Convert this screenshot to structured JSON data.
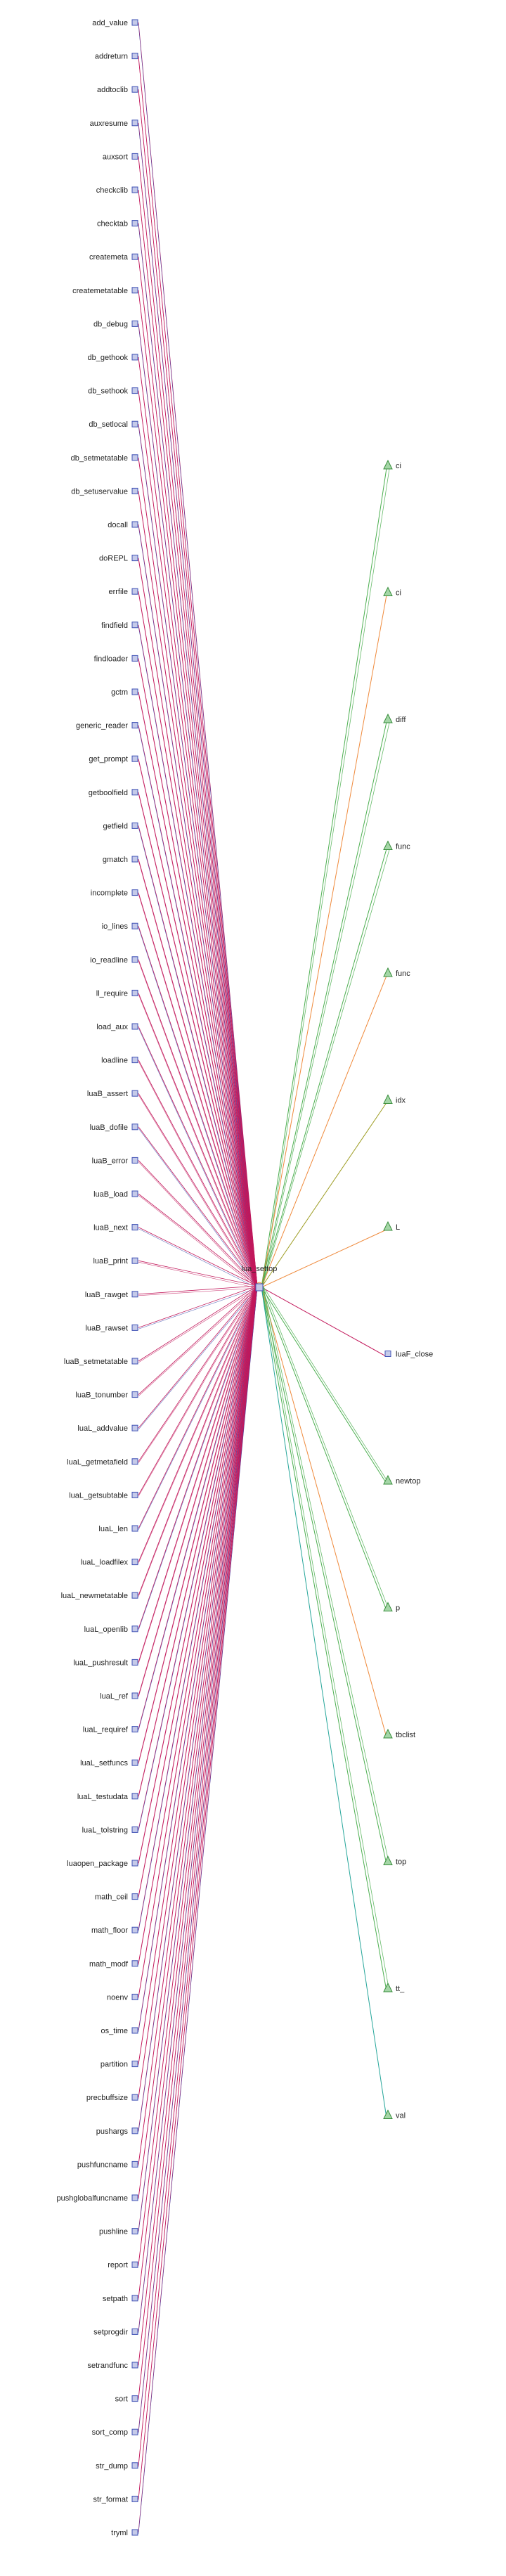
{
  "center": {
    "label": "lua_settop"
  },
  "left_nodes": [
    "add_value",
    "addreturn",
    "addtoclib",
    "auxresume",
    "auxsort",
    "checkclib",
    "checktab",
    "createmeta",
    "createmetatable",
    "db_debug",
    "db_gethook",
    "db_sethook",
    "db_setlocal",
    "db_setmetatable",
    "db_setuservalue",
    "docall",
    "doREPL",
    "errfile",
    "findfield",
    "findloader",
    "gctm",
    "generic_reader",
    "get_prompt",
    "getboolfield",
    "getfield",
    "gmatch",
    "incomplete",
    "io_lines",
    "io_readline",
    "ll_require",
    "load_aux",
    "loadline",
    "luaB_assert",
    "luaB_dofile",
    "luaB_error",
    "luaB_load",
    "luaB_next",
    "luaB_print",
    "luaB_rawget",
    "luaB_rawset",
    "luaB_setmetatable",
    "luaB_tonumber",
    "luaL_addvalue",
    "luaL_getmetafield",
    "luaL_getsubtable",
    "luaL_len",
    "luaL_loadfilex",
    "luaL_newmetatable",
    "luaL_openlib",
    "luaL_pushresult",
    "luaL_ref",
    "luaL_requiref",
    "luaL_setfuncs",
    "luaL_testudata",
    "luaL_tolstring",
    "luaopen_package",
    "math_ceil",
    "math_floor",
    "math_modf",
    "noenv",
    "os_time",
    "partition",
    "precbuffsize",
    "pushargs",
    "pushfuncname",
    "pushglobalfuncname",
    "pushline",
    "report",
    "setpath",
    "setprogdir",
    "setrandfunc",
    "sort",
    "sort_comp",
    "str_dump",
    "str_format",
    "tryml"
  ],
  "right_nodes": [
    {
      "label": "ci",
      "shape": "triangle",
      "edge": "green"
    },
    {
      "label": "ci",
      "shape": "triangle",
      "edge": "orange"
    },
    {
      "label": "diff",
      "shape": "triangle",
      "edge": "green"
    },
    {
      "label": "func",
      "shape": "triangle",
      "edge": "green"
    },
    {
      "label": "func",
      "shape": "triangle",
      "edge": "orange"
    },
    {
      "label": "idx",
      "shape": "triangle",
      "edge": "olive"
    },
    {
      "label": "L",
      "shape": "triangle",
      "edge": "orange"
    },
    {
      "label": "luaF_close",
      "shape": "square",
      "edge": "red"
    },
    {
      "label": "newtop",
      "shape": "triangle",
      "edge": "green"
    },
    {
      "label": "p",
      "shape": "triangle",
      "edge": "green"
    },
    {
      "label": "tbclist",
      "shape": "triangle",
      "edge": "orange"
    },
    {
      "label": "top",
      "shape": "triangle",
      "edge": "green"
    },
    {
      "label": "tt_",
      "shape": "triangle",
      "edge": "green"
    },
    {
      "label": "val",
      "shape": "triangle",
      "edge": "teal"
    }
  ],
  "colors": {
    "caller_edge": "#c2185b",
    "caller_edge_alt": "#3949ab",
    "green": "#4caf50",
    "orange": "#ef8a3c",
    "olive": "#9e9d24",
    "red": "#c2185b",
    "teal": "#26a69a",
    "square_fill": "#c5cae9",
    "square_stroke": "#3f51b5",
    "triangle_fill": "#a5d6a7",
    "triangle_stroke": "#388e3c"
  }
}
